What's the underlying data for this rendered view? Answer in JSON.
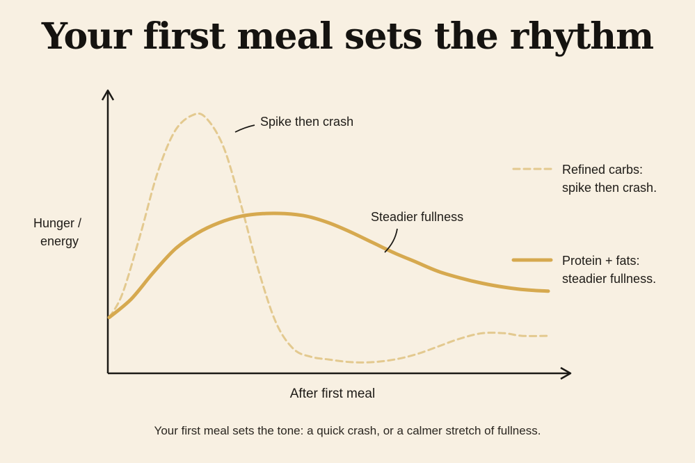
{
  "title": "Your first meal sets the rhythm",
  "caption": "Your first meal sets the tone: a quick crash, or a calmer stretch of fullness.",
  "colors": {
    "background": "#f8f0e2",
    "carbs": "#e3c98f",
    "protein": "#d6a94f",
    "axis": "#1c1a16"
  },
  "chart_data": {
    "type": "line",
    "xlabel": "After first meal",
    "ylabel": [
      "Hunger /",
      "energy"
    ],
    "xlim": [
      0,
      10
    ],
    "ylim": [
      0,
      10
    ],
    "grid": false,
    "legend_position": "right",
    "series": [
      {
        "name": "Refined carbs: spike then crash.",
        "legend_lines": [
          "Refined carbs:",
          "spike then crash."
        ],
        "style": "dashed",
        "color": "#e3c98f",
        "x": [
          0,
          0.3,
          0.7,
          1.1,
          1.5,
          1.9,
          2.2,
          2.6,
          3.0,
          3.4,
          3.8,
          4.2,
          4.6,
          5.0,
          5.5,
          6.0,
          6.5,
          7.0,
          7.5,
          8.0,
          8.5,
          9.0,
          9.4,
          10.0
        ],
        "y": [
          2.1,
          3.0,
          5.2,
          7.6,
          9.2,
          9.8,
          9.7,
          8.6,
          6.4,
          3.9,
          1.9,
          0.9,
          0.6,
          0.5,
          0.4,
          0.4,
          0.5,
          0.7,
          1.0,
          1.3,
          1.5,
          1.5,
          1.4,
          1.4
        ]
      },
      {
        "name": "Protein + fats: steadier fullness.",
        "legend_lines": [
          "Protein + fats:",
          "steadier fullness."
        ],
        "style": "solid",
        "color": "#d6a94f",
        "x": [
          0,
          0.5,
          1.0,
          1.5,
          2.0,
          2.5,
          3.0,
          3.5,
          4.0,
          4.5,
          5.0,
          5.5,
          6.0,
          6.5,
          7.0,
          7.5,
          8.0,
          8.5,
          9.0,
          9.5,
          10.0
        ],
        "y": [
          2.1,
          2.8,
          3.8,
          4.7,
          5.3,
          5.7,
          5.95,
          6.05,
          6.05,
          5.95,
          5.7,
          5.35,
          4.95,
          4.55,
          4.2,
          3.85,
          3.6,
          3.4,
          3.25,
          3.15,
          3.1
        ]
      }
    ],
    "annotations": [
      {
        "text": "Spike then crash",
        "series": 0
      },
      {
        "text": "Steadier fullness",
        "series": 1
      }
    ]
  }
}
